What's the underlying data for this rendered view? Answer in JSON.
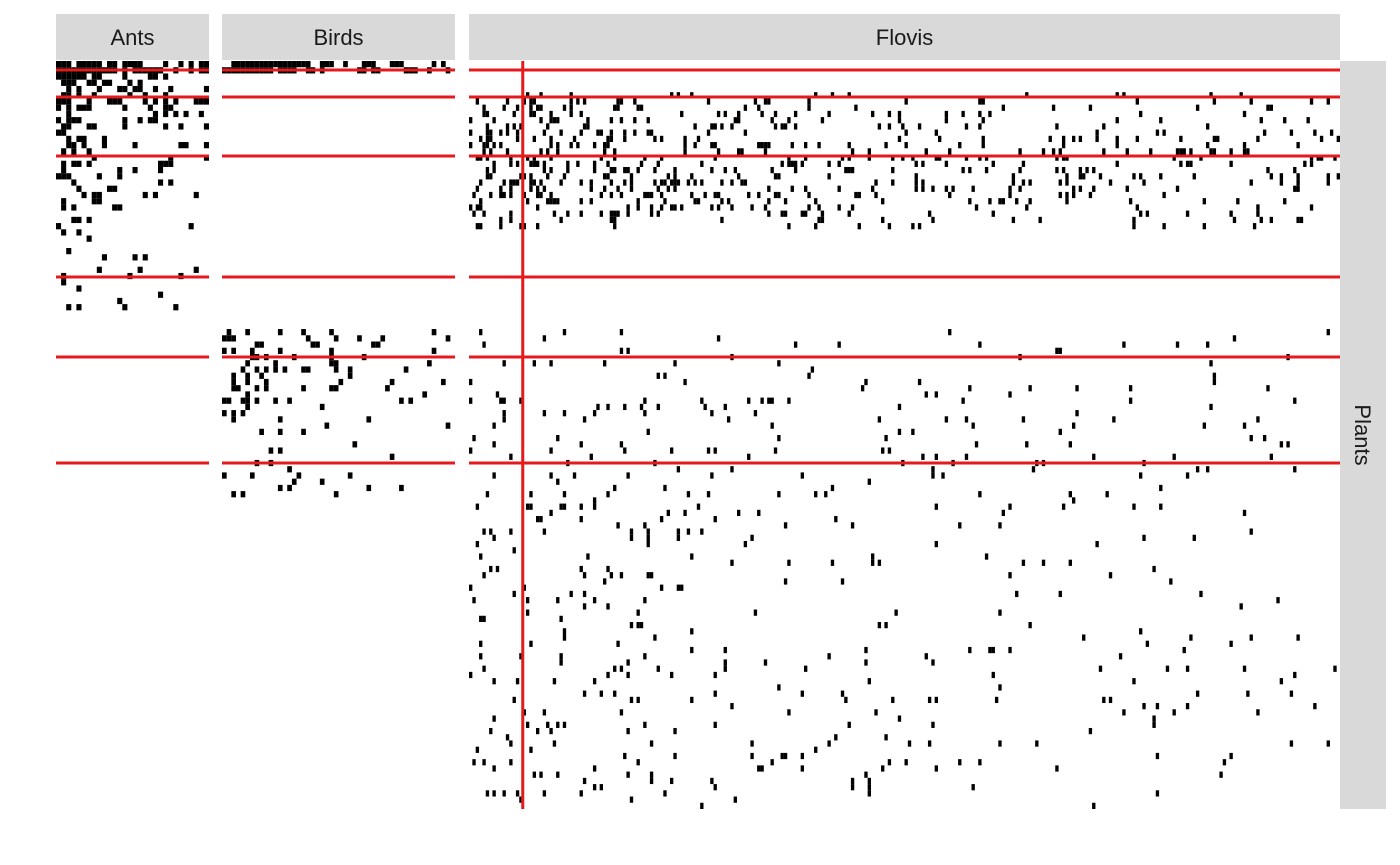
{
  "chart_data": {
    "type": "heatmap",
    "description_kind": "binary interaction matrix (black cell = interaction), faceted by network",
    "facets": {
      "columns": [
        "Ants",
        "Birds",
        "Flovis"
      ],
      "row": "Plants"
    },
    "module_breaks": {
      "Ants": {
        "columns": [],
        "rows": [
          2,
          5,
          11,
          24,
          32,
          43
        ]
      },
      "Birds": {
        "columns": [],
        "rows": [
          2,
          5,
          11,
          24,
          32,
          43
        ]
      },
      "Flovis": {
        "columns": [
          5
        ],
        "rows": [
          2,
          5,
          11,
          24,
          32,
          43
        ]
      }
    },
    "grid": false,
    "legend": "none",
    "colors": {
      "cell": "#000000",
      "module_line": "#e41a1c",
      "strip_fill": "#d9d9d9",
      "strip_text": "#1a1a1a",
      "background": "#ffffff"
    }
  }
}
